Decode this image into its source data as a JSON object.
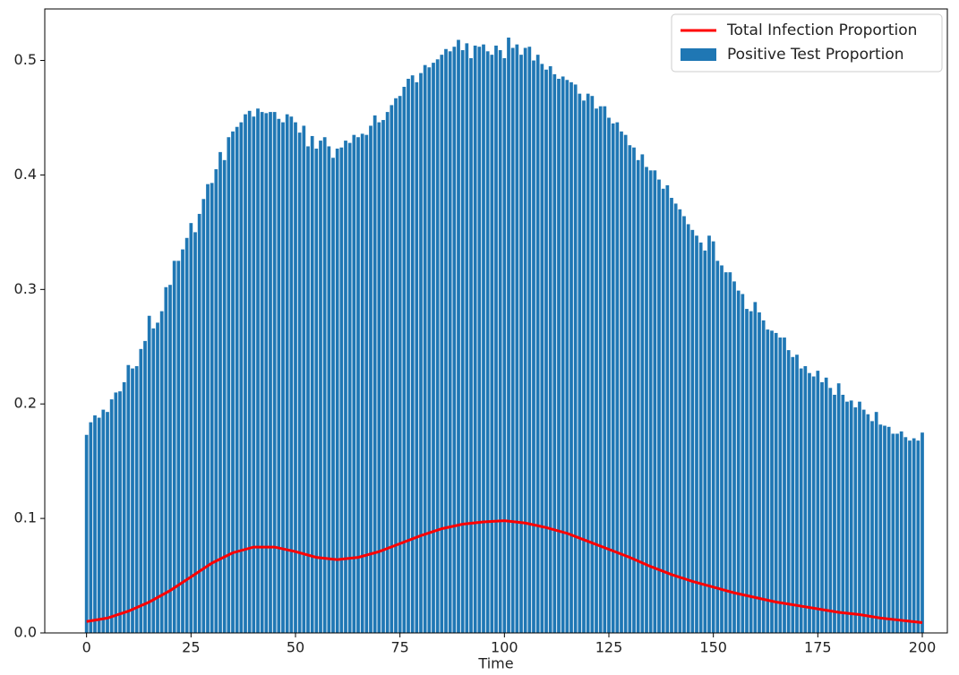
{
  "chart_data": {
    "type": "bar",
    "xlabel": "Time",
    "xlim": [
      -10,
      206
    ],
    "ylim": [
      0,
      0.545
    ],
    "xticks": [
      0,
      25,
      50,
      75,
      100,
      125,
      150,
      175,
      200
    ],
    "yticks": [
      {
        "value": 0,
        "label": "0.0"
      },
      0.1,
      0.2,
      0.3,
      0.4,
      0.5
    ],
    "legend": "upper right",
    "series": [
      {
        "name": "Positive Test Proportion",
        "type": "bar",
        "color": "#1f77b4",
        "x": [
          0,
          1,
          2,
          3,
          4,
          5,
          6,
          7,
          8,
          9,
          10,
          11,
          12,
          13,
          14,
          15,
          16,
          17,
          18,
          19,
          20,
          21,
          22,
          23,
          24,
          25,
          26,
          27,
          28,
          29,
          30,
          31,
          32,
          33,
          34,
          35,
          36,
          37,
          38,
          39,
          40,
          41,
          42,
          43,
          44,
          45,
          46,
          47,
          48,
          49,
          50,
          51,
          52,
          53,
          54,
          55,
          56,
          57,
          58,
          59,
          60,
          61,
          62,
          63,
          64,
          65,
          66,
          67,
          68,
          69,
          70,
          71,
          72,
          73,
          74,
          75,
          76,
          77,
          78,
          79,
          80,
          81,
          82,
          83,
          84,
          85,
          86,
          87,
          88,
          89,
          90,
          91,
          92,
          93,
          94,
          95,
          96,
          97,
          98,
          99,
          100,
          101,
          102,
          103,
          104,
          105,
          106,
          107,
          108,
          109,
          110,
          111,
          112,
          113,
          114,
          115,
          116,
          117,
          118,
          119,
          120,
          121,
          122,
          123,
          124,
          125,
          126,
          127,
          128,
          129,
          130,
          131,
          132,
          133,
          134,
          135,
          136,
          137,
          138,
          139,
          140,
          141,
          142,
          143,
          144,
          145,
          146,
          147,
          148,
          149,
          150,
          151,
          152,
          153,
          154,
          155,
          156,
          157,
          158,
          159,
          160,
          161,
          162,
          163,
          164,
          165,
          166,
          167,
          168,
          169,
          170,
          171,
          172,
          173,
          174,
          175,
          176,
          177,
          178,
          179,
          180,
          181,
          182,
          183,
          184,
          185,
          186,
          187,
          188,
          189,
          190,
          191,
          192,
          193,
          194,
          195,
          196,
          197,
          198,
          199,
          200
        ],
        "values": [
          0.173,
          0.184,
          0.19,
          0.188,
          0.195,
          0.193,
          0.204,
          0.21,
          0.211,
          0.219,
          0.234,
          0.231,
          0.233,
          0.248,
          0.255,
          0.277,
          0.266,
          0.271,
          0.281,
          0.302,
          0.304,
          0.325,
          0.325,
          0.335,
          0.345,
          0.358,
          0.35,
          0.366,
          0.379,
          0.392,
          0.393,
          0.405,
          0.42,
          0.413,
          0.433,
          0.438,
          0.442,
          0.446,
          0.453,
          0.456,
          0.451,
          0.458,
          0.455,
          0.454,
          0.455,
          0.455,
          0.449,
          0.446,
          0.453,
          0.451,
          0.446,
          0.437,
          0.443,
          0.425,
          0.434,
          0.423,
          0.43,
          0.433,
          0.425,
          0.415,
          0.423,
          0.424,
          0.43,
          0.428,
          0.435,
          0.433,
          0.436,
          0.435,
          0.443,
          0.452,
          0.446,
          0.448,
          0.455,
          0.461,
          0.467,
          0.469,
          0.477,
          0.484,
          0.487,
          0.481,
          0.489,
          0.496,
          0.494,
          0.498,
          0.501,
          0.505,
          0.51,
          0.508,
          0.512,
          0.518,
          0.509,
          0.515,
          0.502,
          0.513,
          0.512,
          0.514,
          0.508,
          0.505,
          0.513,
          0.509,
          0.502,
          0.52,
          0.511,
          0.514,
          0.505,
          0.511,
          0.512,
          0.5,
          0.505,
          0.497,
          0.492,
          0.495,
          0.488,
          0.484,
          0.486,
          0.483,
          0.481,
          0.479,
          0.471,
          0.465,
          0.471,
          0.469,
          0.458,
          0.46,
          0.46,
          0.45,
          0.445,
          0.446,
          0.438,
          0.435,
          0.426,
          0.424,
          0.413,
          0.418,
          0.407,
          0.404,
          0.404,
          0.396,
          0.388,
          0.391,
          0.38,
          0.375,
          0.37,
          0.364,
          0.357,
          0.352,
          0.347,
          0.341,
          0.334,
          0.347,
          0.342,
          0.325,
          0.321,
          0.315,
          0.315,
          0.307,
          0.299,
          0.296,
          0.283,
          0.281,
          0.289,
          0.28,
          0.273,
          0.265,
          0.264,
          0.262,
          0.258,
          0.258,
          0.247,
          0.241,
          0.243,
          0.231,
          0.233,
          0.227,
          0.224,
          0.229,
          0.219,
          0.223,
          0.214,
          0.208,
          0.218,
          0.208,
          0.202,
          0.203,
          0.197,
          0.202,
          0.195,
          0.191,
          0.185,
          0.193,
          0.182,
          0.181,
          0.18,
          0.174,
          0.174,
          0.176,
          0.171,
          0.168,
          0.17,
          0.168,
          0.175
        ]
      },
      {
        "name": "Total Infection Proportion",
        "type": "line",
        "color": "#ff0000",
        "x": [
          0,
          5,
          10,
          15,
          20,
          25,
          30,
          35,
          40,
          45,
          50,
          55,
          60,
          65,
          70,
          75,
          80,
          85,
          90,
          95,
          100,
          105,
          110,
          115,
          120,
          125,
          130,
          135,
          140,
          145,
          150,
          155,
          160,
          165,
          170,
          175,
          180,
          185,
          190,
          195,
          200
        ],
        "values": [
          0.01,
          0.013,
          0.019,
          0.027,
          0.037,
          0.049,
          0.061,
          0.07,
          0.075,
          0.075,
          0.071,
          0.066,
          0.064,
          0.066,
          0.071,
          0.078,
          0.085,
          0.091,
          0.095,
          0.097,
          0.098,
          0.096,
          0.092,
          0.087,
          0.08,
          0.073,
          0.066,
          0.058,
          0.051,
          0.045,
          0.04,
          0.035,
          0.031,
          0.027,
          0.024,
          0.021,
          0.018,
          0.016,
          0.013,
          0.011,
          0.009
        ]
      }
    ]
  }
}
